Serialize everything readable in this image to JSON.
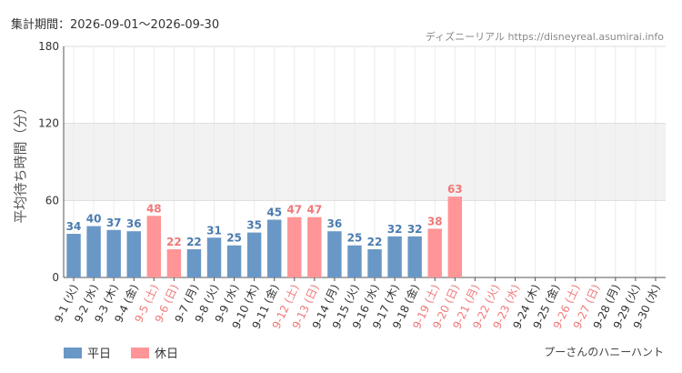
{
  "header": {
    "period": "集計期間：2026-09-01～2026-09-30",
    "source": "ディズニーリアル https://disneyreal.asumirai.info"
  },
  "footer": {
    "attraction": "プーさんのハニーハント"
  },
  "colors": {
    "weekday": "#6a98c6",
    "holiday": "#ff9597",
    "weekday_label": "#4a7bb0",
    "holiday_label": "#f07878",
    "band": "#f2f2f2"
  },
  "chart_data": {
    "type": "bar",
    "ylabel": "平均待ち時間（分）",
    "ylim": [
      0,
      180
    ],
    "yticks": [
      0,
      60,
      120,
      180
    ],
    "shaded_band": [
      60,
      120
    ],
    "grid": true,
    "legend_position": "bottom-left",
    "categories": [
      "9-1 (火)",
      "9-2 (水)",
      "9-3 (木)",
      "9-4 (金)",
      "9-5 (土)",
      "9-6 (日)",
      "9-7 (月)",
      "9-8 (火)",
      "9-9 (水)",
      "9-10 (木)",
      "9-11 (金)",
      "9-12 (土)",
      "9-13 (日)",
      "9-14 (月)",
      "9-15 (火)",
      "9-16 (水)",
      "9-17 (木)",
      "9-18 (金)",
      "9-19 (土)",
      "9-20 (日)",
      "9-21 (月)",
      "9-22 (火)",
      "9-23 (水)",
      "9-24 (木)",
      "9-25 (金)",
      "9-26 (土)",
      "9-27 (日)",
      "9-28 (月)",
      "9-29 (火)",
      "9-30 (水)"
    ],
    "values": [
      34,
      40,
      37,
      36,
      48,
      22,
      22,
      31,
      25,
      35,
      45,
      47,
      47,
      36,
      25,
      22,
      32,
      32,
      38,
      63,
      null,
      null,
      null,
      null,
      null,
      null,
      null,
      null,
      null,
      null
    ],
    "day_type": [
      "weekday",
      "weekday",
      "weekday",
      "weekday",
      "holiday",
      "holiday",
      "weekday",
      "weekday",
      "weekday",
      "weekday",
      "weekday",
      "holiday",
      "holiday",
      "weekday",
      "weekday",
      "weekday",
      "weekday",
      "weekday",
      "holiday",
      "holiday",
      "holiday",
      "holiday",
      "holiday",
      "weekday",
      "weekday",
      "holiday",
      "holiday",
      "weekday",
      "weekday",
      "weekday"
    ],
    "series": [
      {
        "name": "平日",
        "key": "weekday"
      },
      {
        "name": "休日",
        "key": "holiday"
      }
    ]
  }
}
